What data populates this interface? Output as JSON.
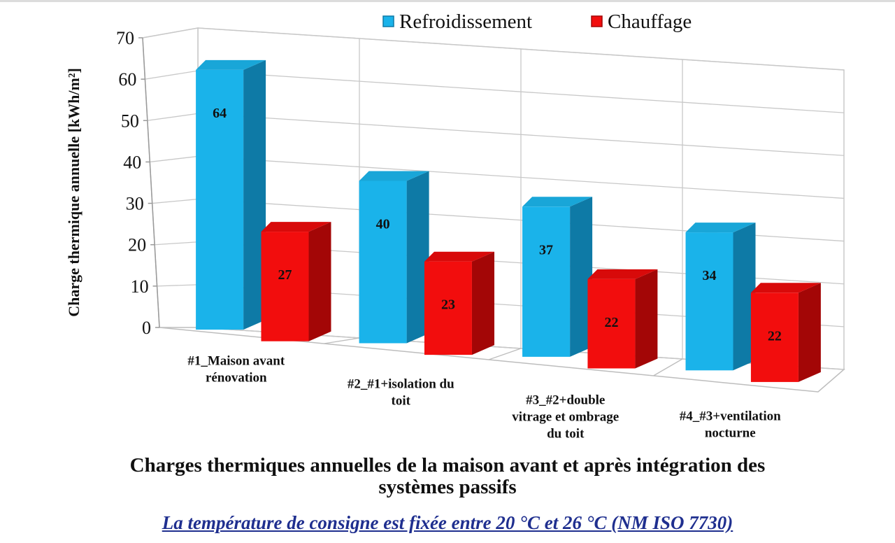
{
  "chart_data": {
    "type": "bar",
    "categories": [
      [
        "#1_Maison avant",
        "rénovation"
      ],
      [
        "#2_#1+isolation du",
        "toit"
      ],
      [
        "#3_#2+double",
        "vitrage et ombrage",
        "du toit"
      ],
      [
        "#4_#3+ventilation",
        "nocturne"
      ]
    ],
    "series": [
      {
        "name": "Refroidissement",
        "values": [
          64,
          40,
          37,
          34
        ]
      },
      {
        "name": "Chauffage",
        "values": [
          27,
          23,
          22,
          22
        ]
      }
    ],
    "ylabel": "Charge thermique annuelle [kWh/m²]",
    "ylim": [
      0,
      70
    ],
    "yticks": [
      0,
      10,
      20,
      30,
      40,
      50,
      60,
      70
    ],
    "grid": true,
    "legend": "top",
    "projection": "3d-column"
  },
  "colors": {
    "Refroidissement": {
      "front": "#1ab3ea",
      "top": "#19a6d8",
      "side": "#0e7aa6"
    },
    "Chauffage": {
      "front": "#f20d0d",
      "top": "#d80a0a",
      "side": "#a30606"
    },
    "grid": "#c8c8c8"
  },
  "caption": {
    "title": "Charges thermiques annuelles de la maison avant et après intégration des systèmes passifs",
    "note": "La température de consigne est fixée entre 20 °C et 26 °C (NM ISO 7730)"
  }
}
